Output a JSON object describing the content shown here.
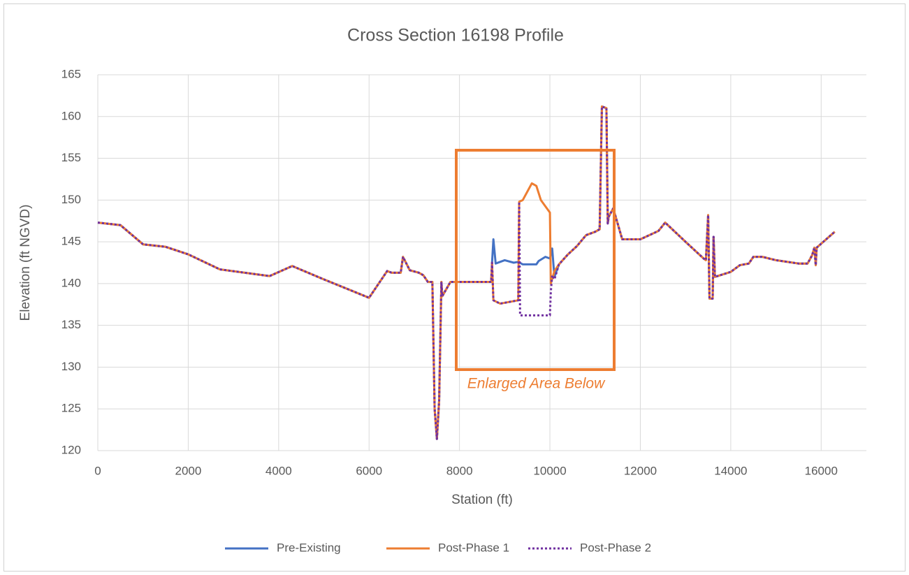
{
  "chart_data": {
    "type": "line",
    "title": "Cross Section 16198 Profile",
    "xlabel": "Station (ft)",
    "ylabel": "Elevation (ft NGVD)",
    "annotation": "Enlarged Area Below",
    "annotation_color": "#ed7d31",
    "xlim": [
      0,
      17000
    ],
    "xticks": [
      0,
      2000,
      4000,
      6000,
      8000,
      10000,
      12000,
      14000,
      16000
    ],
    "ylim": [
      120,
      165
    ],
    "yticks": [
      120,
      125,
      130,
      135,
      140,
      145,
      150,
      155,
      160,
      165
    ],
    "grid": true,
    "legend": "bottom",
    "series": [
      {
        "name": "Pre-Existing",
        "color": "#4472c4",
        "style": "solid",
        "x": [
          0,
          500,
          1000,
          1500,
          2000,
          2700,
          3800,
          4300,
          5000,
          6000,
          6400,
          6500,
          6700,
          6750,
          6900,
          7100,
          7200,
          7300,
          7400,
          7450,
          7500,
          7550,
          7600,
          7620,
          7800,
          8700,
          8720,
          8750,
          8800,
          9000,
          9200,
          9300,
          9400,
          9700,
          9750,
          9900,
          10000,
          10050,
          10100,
          10200,
          10400,
          10600,
          10800,
          11000,
          11100,
          11150,
          11250,
          11280,
          11300,
          11400,
          11600,
          12000,
          12400,
          12550,
          13000,
          13400,
          13450,
          13500,
          13530,
          13600,
          13620,
          13650,
          14000,
          14200,
          14400,
          14500,
          14700,
          15000,
          15500,
          15700,
          15800,
          15850,
          15880,
          15900,
          16300
        ],
        "values": [
          147.3,
          147,
          144.7,
          144.4,
          143.5,
          141.7,
          140.9,
          142.1,
          140.5,
          138.3,
          141.5,
          141.3,
          141.3,
          143.2,
          141.6,
          141.3,
          141,
          140.2,
          140.2,
          125,
          121.4,
          126,
          140.2,
          138.5,
          140.2,
          140.2,
          142.5,
          145.3,
          142.4,
          142.8,
          142.5,
          142.6,
          142.3,
          142.3,
          142.7,
          143.2,
          143,
          144.2,
          140.8,
          142.3,
          143.5,
          144.5,
          145.8,
          146.2,
          146.5,
          161.2,
          161,
          147.2,
          148,
          149,
          145.3,
          145.3,
          146.3,
          147.3,
          145,
          143,
          142.8,
          148.2,
          138.2,
          138.2,
          145.6,
          140.8,
          141.4,
          142.2,
          142.4,
          143.2,
          143.2,
          142.8,
          142.4,
          142.4,
          143.4,
          144.3,
          142.2,
          144.3,
          146.2
        ]
      },
      {
        "name": "Post-Phase 1",
        "color": "#ed7d31",
        "style": "solid",
        "x": [
          0,
          500,
          1000,
          1500,
          2000,
          2700,
          3800,
          4300,
          5000,
          6000,
          6400,
          6500,
          6700,
          6750,
          6900,
          7100,
          7200,
          7300,
          7400,
          7450,
          7500,
          7550,
          7600,
          7620,
          7800,
          8700,
          8720,
          8750,
          8900,
          9100,
          9300,
          9320,
          9400,
          9500,
          9600,
          9700,
          9800,
          10000,
          10020,
          10100,
          10200,
          10400,
          10600,
          10800,
          11000,
          11100,
          11150,
          11250,
          11280,
          11300,
          11400,
          11600,
          12000,
          12400,
          12550,
          13000,
          13400,
          13450,
          13500,
          13530,
          13600,
          13620,
          13650,
          14000,
          14200,
          14400,
          14500,
          14700,
          15000,
          15500,
          15700,
          15800,
          15850,
          15880,
          15900,
          16300
        ],
        "values": [
          147.3,
          147,
          144.7,
          144.4,
          143.5,
          141.7,
          140.9,
          142.1,
          140.5,
          138.3,
          141.5,
          141.3,
          141.3,
          143.2,
          141.6,
          141.3,
          141,
          140.2,
          140.2,
          125,
          121.4,
          126,
          140.2,
          138.5,
          140.2,
          140.2,
          142.5,
          138,
          137.6,
          137.8,
          138,
          149.8,
          150,
          151,
          152,
          151.7,
          150,
          148.5,
          140,
          141.5,
          142.3,
          143.5,
          144.5,
          145.8,
          146.2,
          146.5,
          161.2,
          161,
          147.2,
          148,
          149,
          145.3,
          145.3,
          146.3,
          147.3,
          145,
          143,
          142.8,
          148.2,
          138.2,
          138.2,
          145.6,
          140.8,
          141.4,
          142.2,
          142.4,
          143.2,
          143.2,
          142.8,
          142.4,
          142.4,
          143.4,
          144.3,
          142.2,
          144.3,
          146.2
        ]
      },
      {
        "name": "Post-Phase 2",
        "color": "#7030a0",
        "style": "dotted",
        "x": [
          0,
          500,
          1000,
          1500,
          2000,
          2700,
          3800,
          4300,
          5000,
          6000,
          6400,
          6500,
          6700,
          6750,
          6900,
          7100,
          7200,
          7300,
          7400,
          7450,
          7500,
          7550,
          7600,
          7620,
          7800,
          8700,
          8720,
          8750,
          8900,
          9100,
          9300,
          9320,
          9340,
          10000,
          10020,
          10050,
          10100,
          10200,
          10400,
          10600,
          10800,
          11000,
          11100,
          11150,
          11250,
          11280,
          11300,
          11400,
          11600,
          12000,
          12400,
          12550,
          13000,
          13400,
          13450,
          13500,
          13530,
          13600,
          13620,
          13650,
          14000,
          14200,
          14400,
          14500,
          14700,
          15000,
          15500,
          15700,
          15800,
          15850,
          15880,
          15900,
          16300
        ],
        "values": [
          147.3,
          147,
          144.7,
          144.4,
          143.5,
          141.7,
          140.9,
          142.1,
          140.5,
          138.3,
          141.5,
          141.3,
          141.3,
          143.2,
          141.6,
          141.3,
          141,
          140.2,
          140.2,
          125,
          121.4,
          126,
          140.2,
          138.5,
          140.2,
          140.2,
          142.5,
          138,
          137.6,
          137.8,
          138,
          149.8,
          136.2,
          136.2,
          139,
          141,
          140.5,
          142.3,
          143.5,
          144.5,
          145.8,
          146.2,
          146.5,
          161.2,
          161,
          147.2,
          148,
          149,
          145.3,
          145.3,
          146.3,
          147.3,
          145,
          143,
          142.8,
          148.2,
          138.2,
          138.2,
          145.6,
          140.8,
          141.4,
          142.2,
          142.4,
          143.2,
          143.2,
          142.8,
          142.4,
          142.4,
          143.4,
          144.3,
          142.2,
          144.3,
          146.2
        ]
      }
    ]
  }
}
